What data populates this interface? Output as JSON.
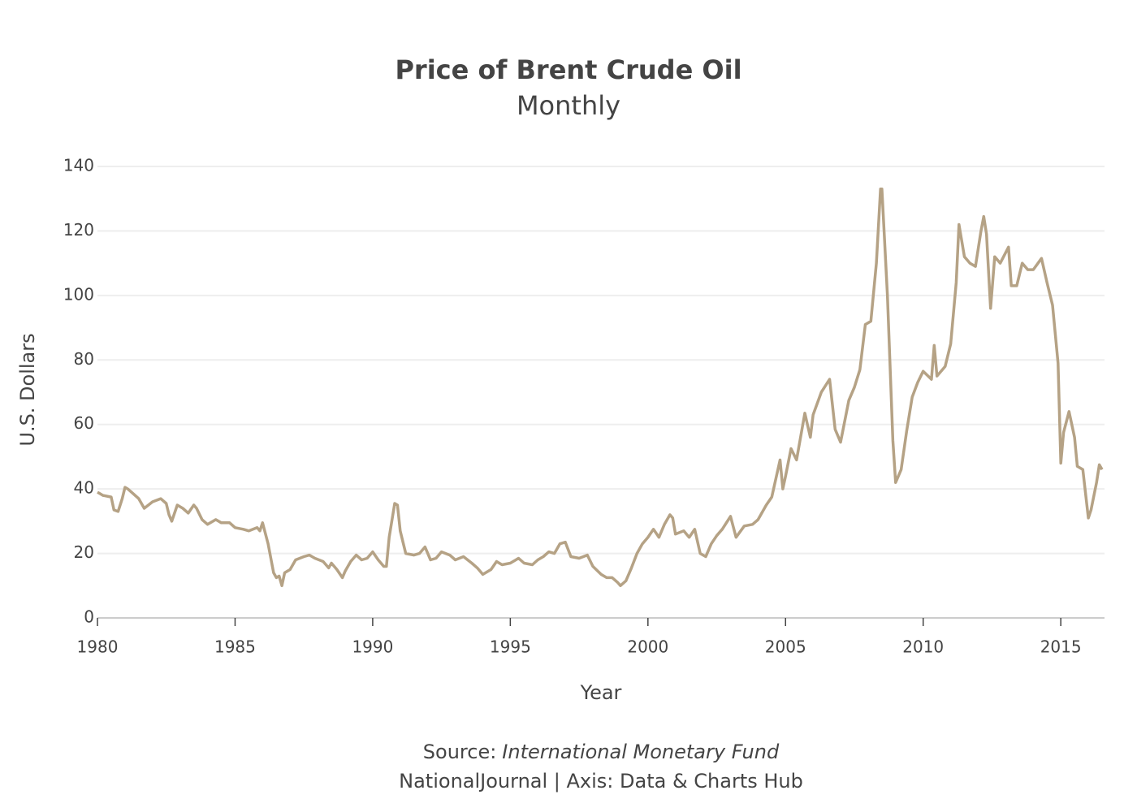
{
  "chart_data": {
    "type": "line",
    "title": "Price of Brent Crude Oil",
    "subtitle": "Monthly",
    "x_label": "Year",
    "y_label": "U.S. Dollars",
    "source_label": "Source:",
    "source": "International Monetary Fund",
    "credit": "NationalJournal | Axis: Data & Charts Hub",
    "xlim": [
      1980,
      2016.5
    ],
    "xticks": [
      1980,
      1985,
      1990,
      1995,
      2000,
      2005,
      2010,
      2015
    ],
    "ylim": [
      0,
      140
    ],
    "yticks": [
      0,
      20,
      40,
      60,
      80,
      100,
      120,
      140
    ],
    "grid": true,
    "x": [
      1980.0,
      1980.2,
      1980.5,
      1980.6,
      1980.75,
      1980.9,
      1981.0,
      1981.1,
      1981.3,
      1981.5,
      1981.7,
      1982.0,
      1982.3,
      1982.5,
      1982.6,
      1982.7,
      1982.9,
      1983.1,
      1983.3,
      1983.5,
      1983.6,
      1983.8,
      1984.0,
      1984.3,
      1984.5,
      1984.8,
      1985.0,
      1985.3,
      1985.5,
      1985.8,
      1985.9,
      1986.0,
      1986.2,
      1986.4,
      1986.5,
      1986.6,
      1986.7,
      1986.8,
      1987.0,
      1987.2,
      1987.5,
      1987.7,
      1987.9,
      1988.2,
      1988.4,
      1988.5,
      1988.7,
      1988.9,
      1989.0,
      1989.2,
      1989.4,
      1989.6,
      1989.8,
      1990.0,
      1990.2,
      1990.4,
      1990.5,
      1990.6,
      1990.8,
      1990.9,
      1991.0,
      1991.2,
      1991.5,
      1991.7,
      1991.9,
      1992.1,
      1992.3,
      1992.5,
      1992.8,
      1993.0,
      1993.3,
      1993.6,
      1993.8,
      1994.0,
      1994.3,
      1994.5,
      1994.7,
      1995.0,
      1995.3,
      1995.5,
      1995.8,
      1996.0,
      1996.2,
      1996.4,
      1996.6,
      1996.8,
      1997.0,
      1997.2,
      1997.5,
      1997.8,
      1998.0,
      1998.3,
      1998.5,
      1998.7,
      1998.9,
      1999.0,
      1999.2,
      1999.4,
      1999.6,
      1999.8,
      2000.0,
      2000.2,
      2000.4,
      2000.6,
      2000.8,
      2000.9,
      2001.0,
      2001.3,
      2001.5,
      2001.7,
      2001.9,
      2002.1,
      2002.3,
      2002.5,
      2002.7,
      2003.0,
      2003.2,
      2003.5,
      2003.8,
      2004.0,
      2004.3,
      2004.5,
      2004.8,
      2004.9,
      2005.0,
      2005.2,
      2005.4,
      2005.7,
      2005.9,
      2006.0,
      2006.3,
      2006.6,
      2006.8,
      2007.0,
      2007.3,
      2007.5,
      2007.7,
      2007.9,
      2008.1,
      2008.3,
      2008.45,
      2008.5,
      2008.7,
      2008.9,
      2009.0,
      2009.2,
      2009.4,
      2009.6,
      2009.8,
      2010.0,
      2010.3,
      2010.4,
      2010.5,
      2010.8,
      2011.0,
      2011.2,
      2011.3,
      2011.5,
      2011.7,
      2011.9,
      2012.1,
      2012.2,
      2012.3,
      2012.45,
      2012.6,
      2012.8,
      2013.1,
      2013.2,
      2013.4,
      2013.6,
      2013.8,
      2014.0,
      2014.3,
      2014.5,
      2014.7,
      2014.9,
      2015.0,
      2015.1,
      2015.3,
      2015.5,
      2015.6,
      2015.8,
      2016.0,
      2016.1,
      2016.3,
      2016.4,
      2016.5
    ],
    "series": [
      {
        "name": "Brent",
        "color": "#b5a285",
        "values": [
          39,
          38,
          37.5,
          33.5,
          33,
          37,
          40.5,
          40,
          38.5,
          37,
          34,
          36,
          37,
          35.5,
          32,
          30,
          35,
          34,
          32.5,
          35,
          34,
          30.5,
          29,
          30.5,
          29.5,
          29.5,
          28,
          27.5,
          27,
          28,
          27,
          29.5,
          23,
          14,
          12.5,
          13,
          10,
          14,
          15,
          18,
          19,
          19.5,
          18.5,
          17.5,
          15.5,
          17,
          15,
          12.5,
          14.5,
          17.5,
          19.5,
          18,
          18.5,
          20.5,
          18,
          16,
          16,
          25,
          35.5,
          35,
          27,
          20,
          19.5,
          20,
          22,
          18,
          18.5,
          20.5,
          19.5,
          18,
          19,
          17,
          15.5,
          13.5,
          15,
          17.5,
          16.5,
          17,
          18.5,
          17,
          16.5,
          18,
          19,
          20.5,
          20,
          23,
          23.5,
          19,
          18.5,
          19.5,
          16,
          13.5,
          12.5,
          12.5,
          11,
          10,
          11.5,
          15.5,
          20,
          23,
          25,
          27.5,
          25,
          29,
          32,
          31,
          26,
          27,
          25,
          27.5,
          20,
          19,
          23,
          25.5,
          27.5,
          31.5,
          25,
          28.5,
          29,
          30.5,
          35,
          37.5,
          49,
          40,
          44,
          52.5,
          49,
          63.5,
          56,
          63,
          70,
          74,
          58.5,
          54.5,
          67.5,
          71.5,
          77,
          91,
          92,
          110,
          133,
          133,
          100,
          55,
          42,
          46,
          58,
          68.5,
          73,
          76.5,
          74,
          84.5,
          75,
          78,
          85,
          104,
          122,
          112,
          110,
          109,
          120,
          124.5,
          119,
          96,
          112,
          110,
          115,
          103,
          103,
          110,
          108,
          108,
          111.5,
          104,
          97,
          79,
          48,
          57.5,
          64,
          56,
          47,
          46,
          31,
          33.5,
          42,
          47.5,
          46
        ]
      }
    ]
  }
}
